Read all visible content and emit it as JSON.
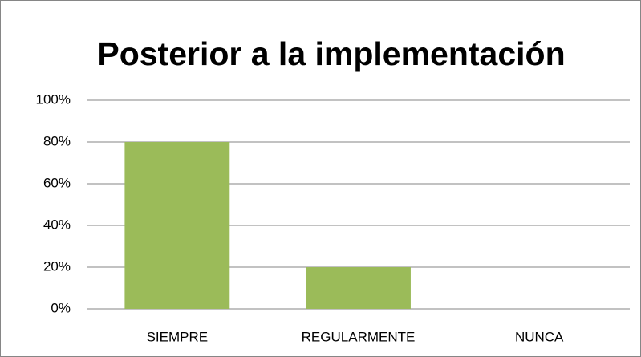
{
  "chart_data": {
    "type": "bar",
    "title": "Posterior a la implementación",
    "categories": [
      "SIEMPRE",
      "REGULARMENTE",
      "NUNCA"
    ],
    "values": [
      80,
      20,
      0
    ],
    "color": "#9bbb59",
    "ylim": [
      0,
      100
    ],
    "yticks": [
      {
        "value": 0,
        "label": "0%"
      },
      {
        "value": 20,
        "label": "20%"
      },
      {
        "value": 40,
        "label": "40%"
      },
      {
        "value": 60,
        "label": "60%"
      },
      {
        "value": 80,
        "label": "80%"
      },
      {
        "value": 100,
        "label": "100%"
      }
    ],
    "grid": true
  }
}
